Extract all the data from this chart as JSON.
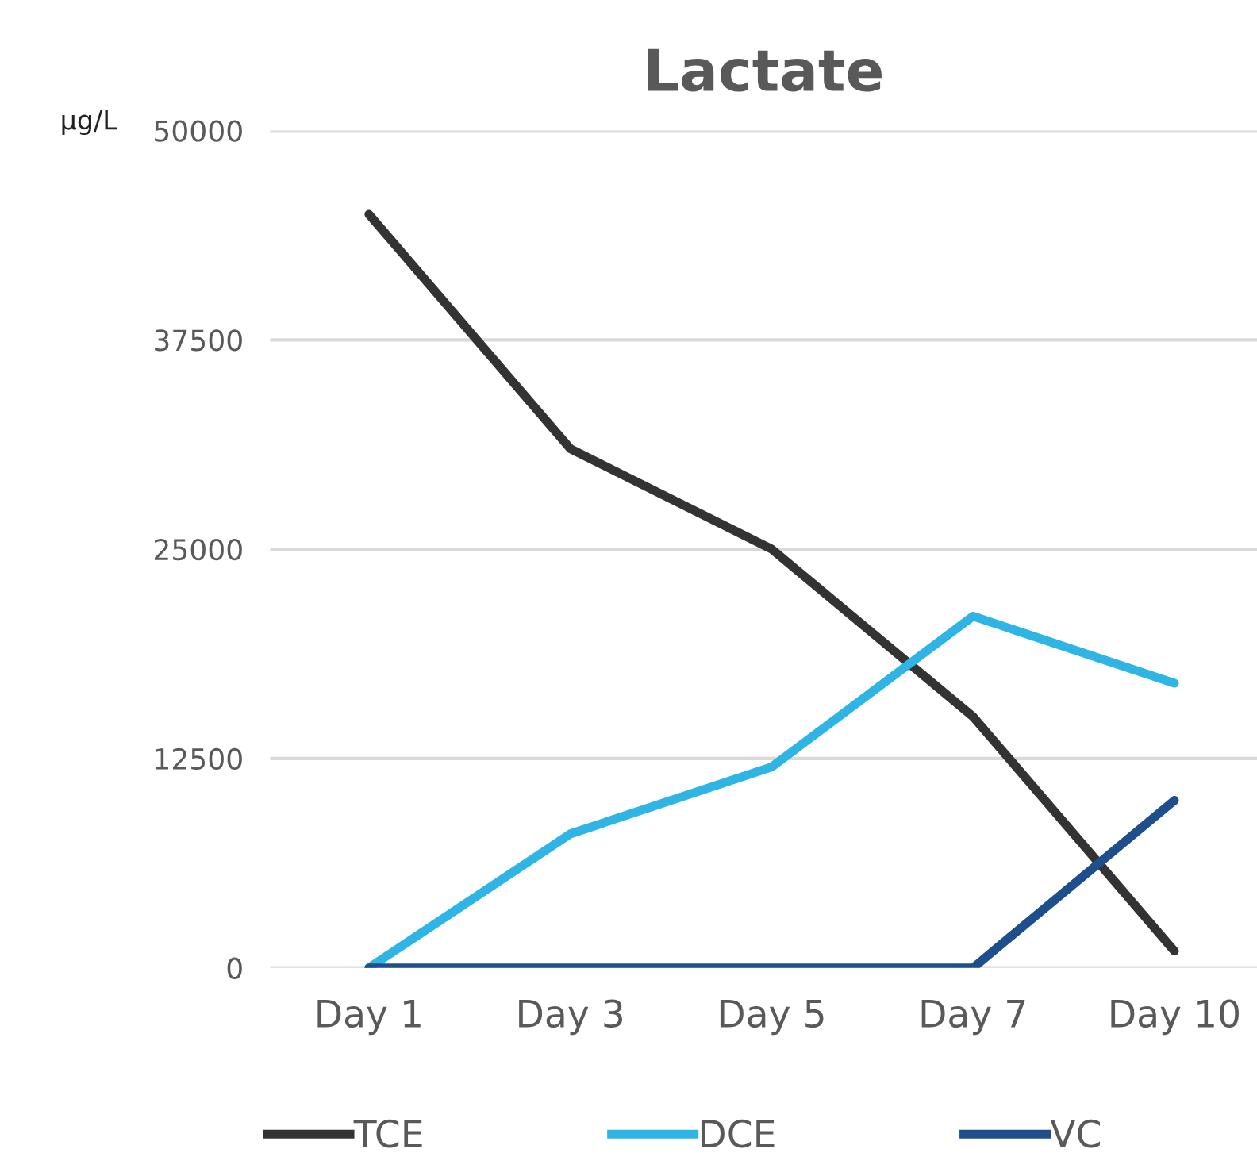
{
  "chart_data": {
    "type": "line",
    "title": "Lactate",
    "ylabel": "µg/L",
    "categories": [
      "Day 1",
      "Day 3",
      "Day 5",
      "Day 7",
      "Day 10"
    ],
    "series": [
      {
        "name": "TCE",
        "color": "#333333",
        "values": [
          45000,
          31000,
          25000,
          15000,
          1000
        ]
      },
      {
        "name": "DCE",
        "color": "#2fb4e6",
        "values": [
          0,
          8000,
          12000,
          21000,
          17000
        ]
      },
      {
        "name": "VC",
        "color": "#1f4e8c",
        "values": [
          0,
          0,
          0,
          0,
          10000
        ]
      }
    ],
    "ylim": [
      0,
      50000
    ],
    "yticks": [
      0,
      12500,
      25000,
      37500,
      50000
    ],
    "grid": "y",
    "legend": "bottom",
    "marker": "none",
    "line_style": "solid"
  }
}
